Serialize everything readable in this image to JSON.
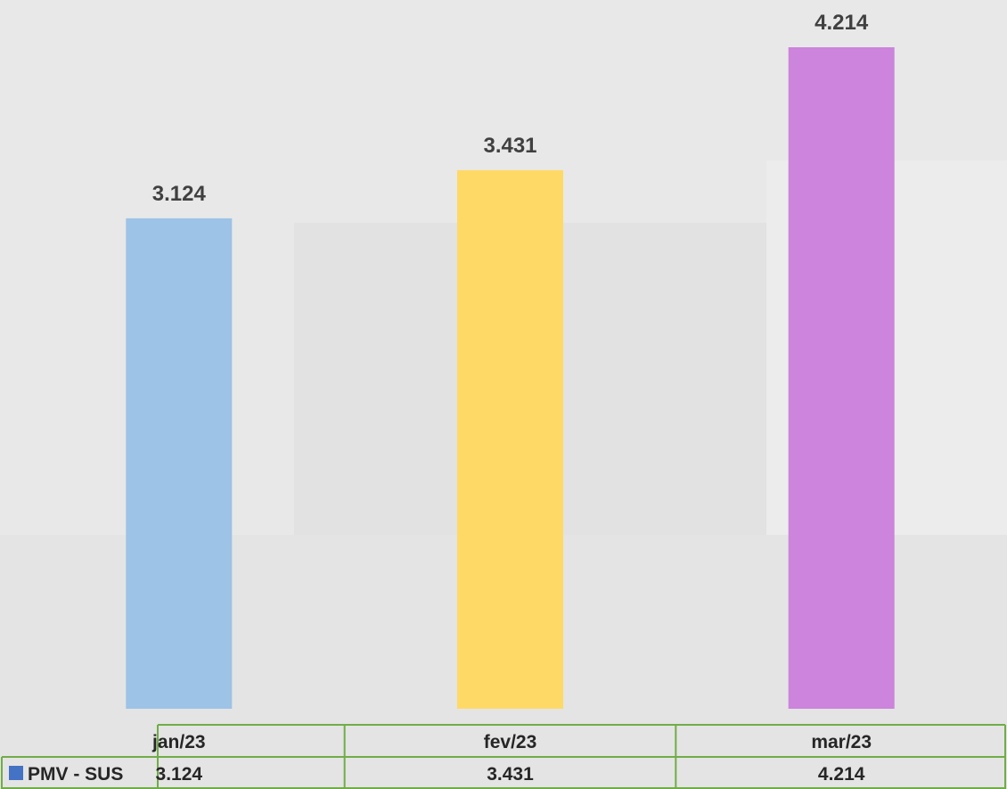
{
  "chart_data": {
    "type": "bar",
    "categories": [
      "jan/23",
      "fev/23",
      "mar/23"
    ],
    "series": [
      {
        "name": "PMV - SUS",
        "values": [
          3124,
          3431,
          4214
        ],
        "value_labels": [
          "3.124",
          "3.431",
          "4.214"
        ],
        "legend_color": "#4472c4"
      }
    ],
    "bar_colors": [
      "#9dc3e6",
      "#ffd966",
      "#cc84dc"
    ],
    "ylim": [
      0,
      4214
    ],
    "grid": false,
    "legend": "data-table",
    "table_border_color": "#70ad47"
  }
}
